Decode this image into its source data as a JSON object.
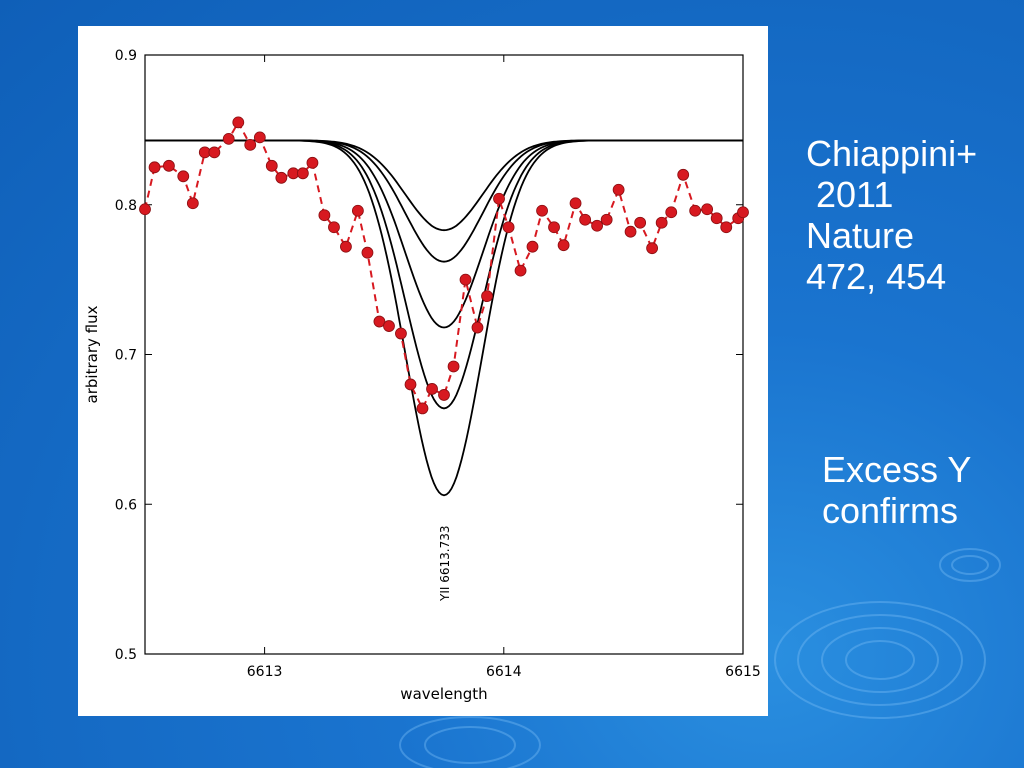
{
  "slide": {
    "citation_lines": [
      "Chiappini+",
      " 2011",
      "Nature",
      "472, 454"
    ],
    "note_lines": [
      "Excess Y",
      "confirms"
    ]
  },
  "colors": {
    "background": "#1a74cf",
    "observed": "#d71920",
    "model": "#000000"
  },
  "chart_data": {
    "type": "line",
    "title": "",
    "xlabel": "wavelength",
    "ylabel": "arbitrary flux",
    "xlim": [
      6612.5,
      6615
    ],
    "ylim": [
      0.5,
      0.9
    ],
    "x_ticks": [
      6613,
      6614,
      6615
    ],
    "x_tick_labels": [
      "6613",
      "6614",
      "6615"
    ],
    "y_ticks": [
      0.5,
      0.6,
      0.7,
      0.8,
      0.9
    ],
    "y_tick_labels": [
      "0.5",
      "0.6",
      "0.7",
      "0.8",
      "0.9"
    ],
    "grid": false,
    "annotation": {
      "text": "YII 6613.733",
      "x": 6613.75,
      "orientation": "vertical"
    },
    "observed": {
      "style": "red dashed line with circle markers",
      "x": [
        6612.5,
        6612.54,
        6612.6,
        6612.66,
        6612.7,
        6612.75,
        6612.79,
        6612.85,
        6612.89,
        6612.94,
        6612.98,
        6613.03,
        6613.07,
        6613.12,
        6613.16,
        6613.2,
        6613.25,
        6613.29,
        6613.34,
        6613.39,
        6613.43,
        6613.48,
        6613.52,
        6613.57,
        6613.61,
        6613.66,
        6613.7,
        6613.75,
        6613.79,
        6613.84,
        6613.89,
        6613.93,
        6613.98,
        6614.02,
        6614.07,
        6614.12,
        6614.16,
        6614.21,
        6614.25,
        6614.3,
        6614.34,
        6614.39,
        6614.43,
        6614.48,
        6614.53,
        6614.57,
        6614.62,
        6614.66,
        6614.7,
        6614.75,
        6614.8,
        6614.85,
        6614.89,
        6614.93,
        6614.98,
        6615.0
      ],
      "y": [
        0.797,
        0.825,
        0.826,
        0.819,
        0.801,
        0.835,
        0.835,
        0.844,
        0.855,
        0.84,
        0.845,
        0.826,
        0.818,
        0.821,
        0.821,
        0.828,
        0.793,
        0.785,
        0.772,
        0.796,
        0.768,
        0.722,
        0.719,
        0.714,
        0.68,
        0.664,
        0.677,
        0.673,
        0.692,
        0.75,
        0.718,
        0.739,
        0.804,
        0.785,
        0.756,
        0.772,
        0.796,
        0.785,
        0.773,
        0.801,
        0.79,
        0.786,
        0.79,
        0.81,
        0.782,
        0.788,
        0.771,
        0.788,
        0.795,
        0.82,
        0.796,
        0.797,
        0.791,
        0.785,
        0.791,
        0.795
      ]
    },
    "models": {
      "style": "black solid lines",
      "continuum": 0.843,
      "center": 6613.75,
      "width": 0.16,
      "minima": [
        0.783,
        0.762,
        0.718,
        0.664,
        0.606
      ]
    }
  }
}
